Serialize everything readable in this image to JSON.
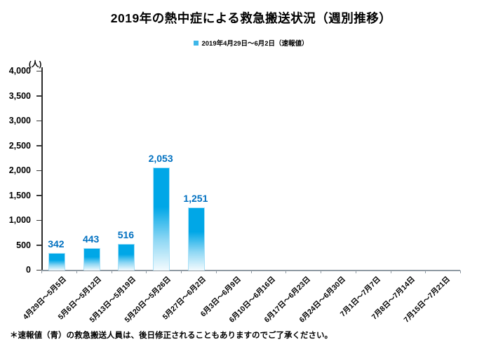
{
  "title": "2019年の熱中症による救急搬送状況（週別推移）",
  "legend": {
    "label": "2019年4月29日～6月2日（速報値）",
    "marker_color": "#3eb7e9"
  },
  "y_axis_unit": "(人)",
  "footnote": "＊速報値（青）の救急搬送人員は、後日修正されることもありますのでご了承ください。",
  "colors": {
    "bar_top": "#00a7e7",
    "bar_border": "#a9e0f7",
    "value_label": "#0070c0",
    "axis_dark": "#2b2b2b",
    "axis_light": "#8f9aa3"
  },
  "chart_data": {
    "type": "bar",
    "title": "2019年の熱中症による救急搬送状況（週別推移）",
    "legend_entries": [
      "2019年4月29日～6月2日（速報値）"
    ],
    "legend_position": "top",
    "categories": [
      "4月29日～5月5日",
      "5月6日～5月12日",
      "5月13日～5月19日",
      "5月20日～5月26日",
      "5月27日～6月2日",
      "6月3日～6月9日",
      "6月10日～6月16日",
      "6月17日～6月23日",
      "6月24日～6月30日",
      "7月1日～7月7日",
      "7月8日～7月14日",
      "7月15日～7月21日"
    ],
    "values": [
      342,
      443,
      516,
      2053,
      1251,
      null,
      null,
      null,
      null,
      null,
      null,
      null
    ],
    "value_labels": [
      "342",
      "443",
      "516",
      "2,053",
      "1,251",
      null,
      null,
      null,
      null,
      null,
      null,
      null
    ],
    "ylabel": "(人)",
    "ylim": [
      0,
      4000
    ],
    "ytick_interval": 500,
    "ytick_labels": [
      "0",
      "500",
      "1,000",
      "1,500",
      "2,000",
      "2,500",
      "3,000",
      "3,500",
      "4,000"
    ],
    "grid": false
  }
}
